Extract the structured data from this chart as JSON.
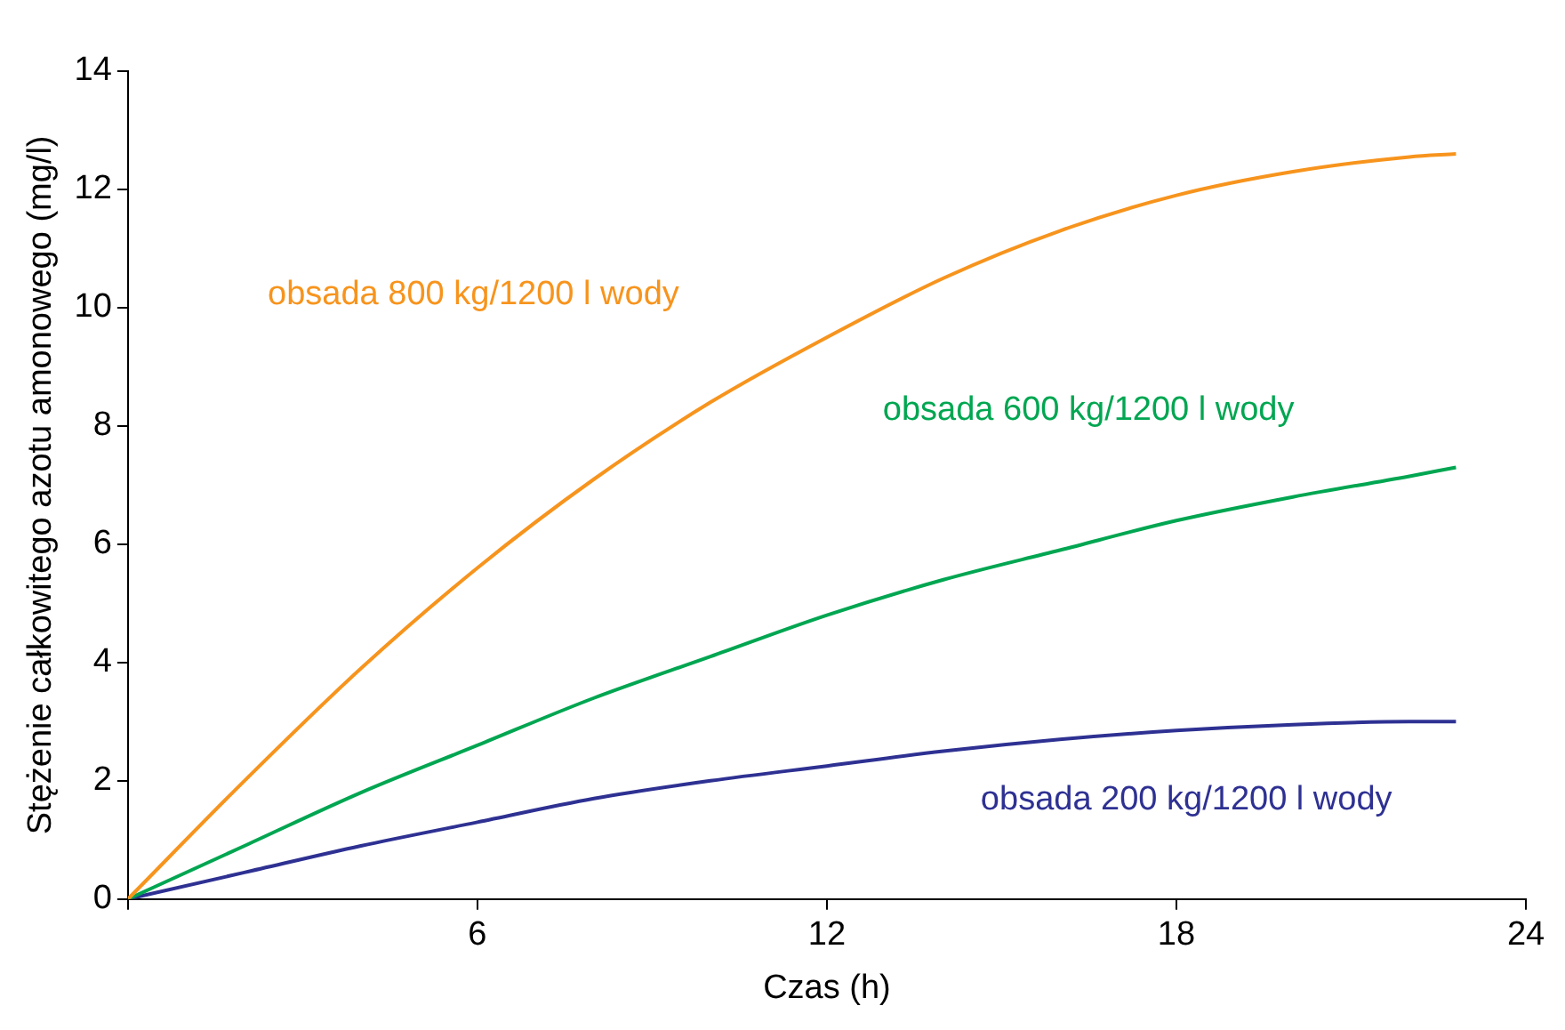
{
  "chart_data": {
    "type": "line",
    "xlabel": "Czas (h)",
    "ylabel": "Stężenie całkowitego azotu amonowego (mg/l)",
    "x": [
      0,
      2,
      4,
      6,
      8,
      10,
      12,
      14,
      16,
      18,
      20,
      22,
      22.8
    ],
    "series": [
      {
        "name": "obsada 800 kg/1200 l wody",
        "color": "#f7941d",
        "values": [
          0,
          2.0,
          3.9,
          5.6,
          7.1,
          8.4,
          9.5,
          10.5,
          11.3,
          11.9,
          12.3,
          12.55,
          12.6
        ]
      },
      {
        "name": "obsada 600 kg/1200 l wody",
        "color": "#00a651",
        "values": [
          0,
          0.9,
          1.8,
          2.6,
          3.4,
          4.1,
          4.8,
          5.4,
          5.9,
          6.4,
          6.8,
          7.15,
          7.3
        ]
      },
      {
        "name": "obsada 200 kg/1200 l wody",
        "color": "#2e3192",
        "values": [
          0,
          0.45,
          0.9,
          1.3,
          1.7,
          2.0,
          2.25,
          2.5,
          2.7,
          2.85,
          2.95,
          3.0,
          3.0
        ]
      }
    ],
    "xlim": [
      0,
      24
    ],
    "xticks": [
      {
        "value": 0,
        "label": null
      },
      6,
      12,
      18,
      24
    ],
    "ylim": [
      0,
      14
    ],
    "yticks": [
      0,
      2,
      4,
      6,
      8,
      10,
      12,
      14
    ],
    "grid": false,
    "legend": false,
    "marker": "none",
    "line_style": "solid"
  }
}
